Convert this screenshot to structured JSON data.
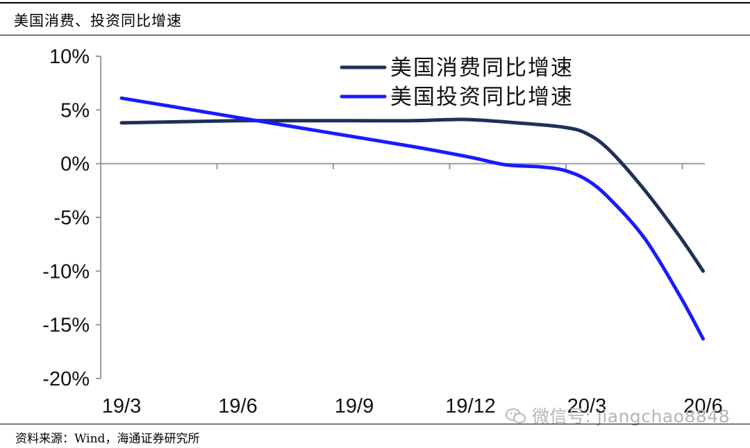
{
  "header": {
    "title": "美国消费、投资同比增速"
  },
  "footer": {
    "source": "资料来源：Wind，海通证券研究所",
    "watermark": "微信号: jiangchao8848"
  },
  "chart_data": {
    "type": "line",
    "title": "美国消费、投资同比增速",
    "xlabel": "",
    "ylabel": "",
    "categories": [
      "19/3",
      "19/6",
      "19/9",
      "19/12",
      "20/3",
      "20/6"
    ],
    "yticks": [
      "10%",
      "5%",
      "0%",
      "-5%",
      "-10%",
      "-15%",
      "-20%"
    ],
    "ylim": [
      -20,
      10
    ],
    "grid": false,
    "legend_position": "top-right",
    "colors": {
      "consumption": "#1f2f5a",
      "investment": "#1a1aff",
      "axis": "#9a9a9a"
    },
    "series": [
      {
        "name": "美国消费同比增速",
        "x": [
          0,
          0.5,
          1,
          1.5,
          2,
          2.5,
          2.8,
          3,
          3.4,
          3.8,
          4.0,
          4.2,
          4.5,
          4.8,
          5.0
        ],
        "values": [
          3.8,
          3.9,
          4.0,
          4.0,
          4.0,
          4.0,
          4.1,
          4.1,
          3.8,
          3.4,
          2.8,
          1.2,
          -2.5,
          -6.8,
          -10.0
        ]
      },
      {
        "name": "美国投资同比增速",
        "x": [
          0,
          0.5,
          1,
          1.5,
          2,
          2.5,
          3,
          3.3,
          3.6,
          3.8,
          4.0,
          4.2,
          4.5,
          4.8,
          5.0
        ],
        "values": [
          6.1,
          5.2,
          4.3,
          3.4,
          2.5,
          1.6,
          0.6,
          -0.1,
          -0.3,
          -0.6,
          -1.5,
          -3.3,
          -7.0,
          -12.3,
          -16.3
        ]
      }
    ]
  }
}
